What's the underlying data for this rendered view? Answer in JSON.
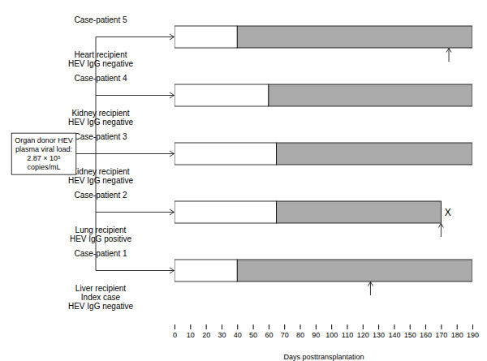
{
  "chart_data": {
    "type": "bar",
    "orientation": "horizontal",
    "stacked": true,
    "categories": [
      "Case-patient 5",
      "Case-patient 4",
      "Case-patient 3",
      "Case-patient 2",
      "Case-patient 1"
    ],
    "sublabels": [
      [
        "Heart recipient",
        "HEV IgG negative"
      ],
      [
        "Kidney recipient",
        "HEV IgG negative"
      ],
      [
        "Kidney recipient",
        "HEV IgG negative"
      ],
      [
        "Lung recipient",
        "HEV IgG positive"
      ],
      [
        "Liver recipient",
        "Index case",
        "HEV IgG negative"
      ]
    ],
    "series": [
      {
        "color": "#ffffff",
        "values": [
          40,
          60,
          65,
          65,
          40
        ]
      },
      {
        "color": "#aaaaaa",
        "values": [
          150,
          130,
          125,
          105,
          150
        ]
      }
    ],
    "diagnosis": [
      175,
      null,
      null,
      170,
      125
    ],
    "death": [
      false,
      false,
      false,
      true,
      false
    ],
    "death_marker": "X",
    "annotation": "Organ donor HEV\nplasma viral load:\n2.87 × 10⁵\ncopies/mL",
    "xlim": [
      0,
      190
    ],
    "xticks": [
      0,
      10,
      20,
      30,
      40,
      50,
      60,
      70,
      80,
      90,
      100,
      110,
      120,
      130,
      140,
      150,
      160,
      170,
      180,
      190
    ],
    "xlabel": "Days posttransplantation",
    "tick_labels": "x",
    "grid": false
  }
}
